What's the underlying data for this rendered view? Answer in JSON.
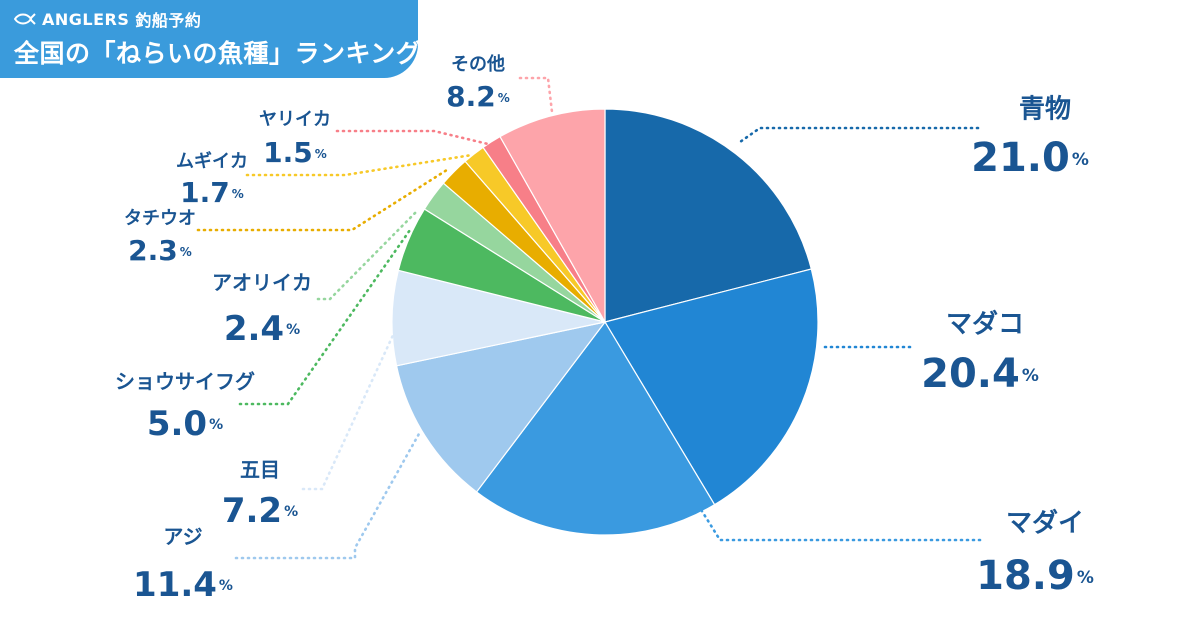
{
  "header": {
    "brand": "ANGLERS",
    "brand_sub": "釣船予約",
    "title": "全国の「ねらいの魚種」ランキング"
  },
  "chart_data": {
    "type": "pie",
    "unit": "%",
    "slices": [
      {
        "label": "青物",
        "value": 21.0,
        "value_text": "21.0",
        "color": "#1769aa"
      },
      {
        "label": "マダコ",
        "value": 20.4,
        "value_text": "20.4",
        "color": "#2186d4"
      },
      {
        "label": "マダイ",
        "value": 18.9,
        "value_text": "18.9",
        "color": "#3a9ae0"
      },
      {
        "label": "アジ",
        "value": 11.4,
        "value_text": "11.4",
        "color": "#9fc9ee"
      },
      {
        "label": "五目",
        "value": 7.2,
        "value_text": "7.2",
        "color": "#d9e8f8"
      },
      {
        "label": "ショウサイフグ",
        "value": 5.0,
        "value_text": "5.0",
        "color": "#4db960"
      },
      {
        "label": "アオリイカ",
        "value": 2.4,
        "value_text": "2.4",
        "color": "#96d69e"
      },
      {
        "label": "タチウオ",
        "value": 2.3,
        "value_text": "2.3",
        "color": "#e8ad00"
      },
      {
        "label": "ムギイカ",
        "value": 1.7,
        "value_text": "1.7",
        "color": "#f7c928"
      },
      {
        "label": "ヤリイカ",
        "value": 1.5,
        "value_text": "1.5",
        "color": "#f77f88"
      },
      {
        "label": "その他",
        "value": 8.2,
        "value_text": "8.2",
        "color": "#fda4aa"
      }
    ]
  }
}
